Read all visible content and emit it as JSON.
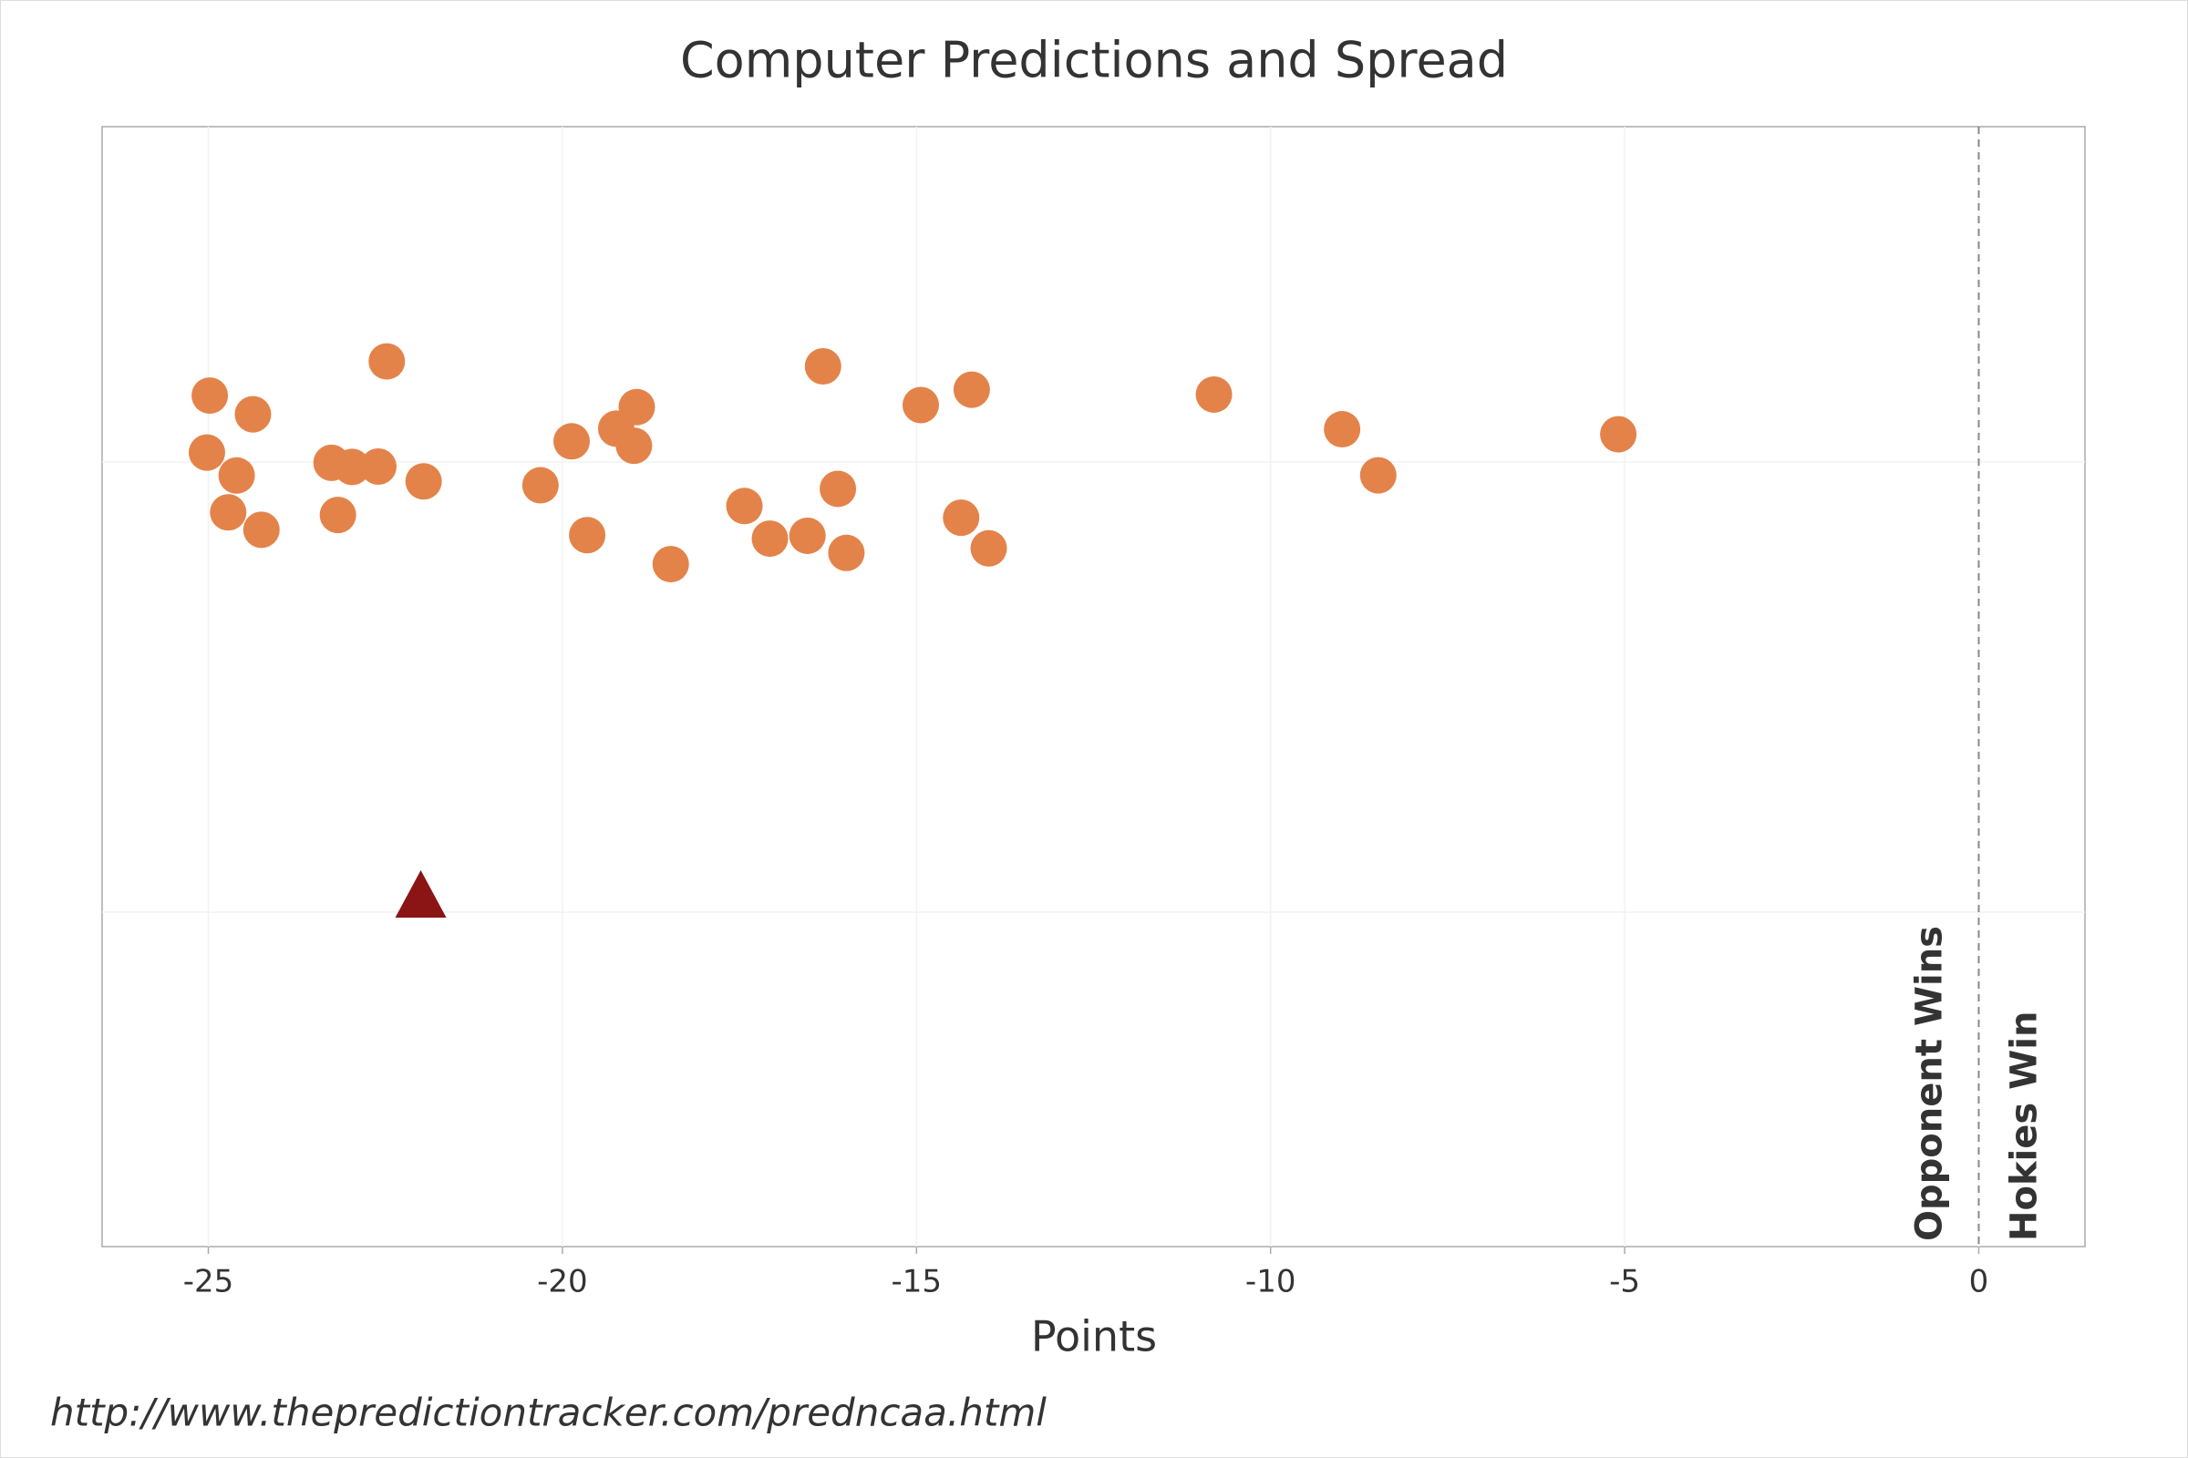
{
  "chart_data": {
    "type": "strip",
    "title": "Computer Predictions and Spread",
    "x_label": "Points",
    "xlim": [
      -26.5,
      1.5
    ],
    "xticks": [
      -25,
      -20,
      -15,
      -10,
      -5,
      0
    ],
    "grid": true,
    "reference_line": 0,
    "annotations": [
      "Opponent Wins",
      "Hokies Win"
    ],
    "series": [
      {
        "marker": "circle",
        "color": "#e3834a",
        "x": [
          -24.98,
          -24.72,
          -24.6,
          -25.02,
          -24.37,
          -24.25,
          -23.17,
          -23.26,
          -22.97,
          -22.6,
          -22.48,
          -21.96,
          -20.31,
          -19.87,
          -19.65,
          -19.24,
          -18.99,
          -18.95,
          -18.47,
          -17.43,
          -17.07,
          -16.54,
          -16.32,
          -16.11,
          -15.99,
          -14.94,
          -14.37,
          -14.22,
          -13.98,
          -10.8,
          -8.99,
          -8.48,
          -5.09
        ]
      },
      {
        "marker": "triangle",
        "color": "#8b1414",
        "x": [
          -22
        ]
      }
    ],
    "source": "http://www.thepredictiontracker.com/predncaa.html"
  }
}
